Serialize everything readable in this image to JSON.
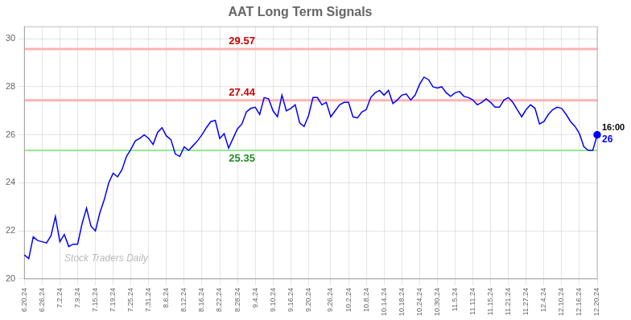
{
  "chart_data": {
    "type": "line",
    "title": "AAT Long Term Signals",
    "categories": [
      "6.20.24",
      null,
      null,
      null,
      "6.26.24",
      null,
      null,
      null,
      "7.2.24",
      null,
      null,
      null,
      "7.9.24",
      null,
      null,
      null,
      "7.15.24",
      null,
      null,
      null,
      "7.19.24",
      null,
      null,
      null,
      "7.25.24",
      null,
      null,
      null,
      "7.31.24",
      null,
      null,
      null,
      "8.6.24",
      null,
      null,
      null,
      "8.12.24",
      null,
      null,
      null,
      "8.16.24",
      null,
      null,
      null,
      "8.22.24",
      null,
      null,
      null,
      "8.28.24",
      null,
      null,
      null,
      "9.4.24",
      null,
      null,
      null,
      "9.10.24",
      null,
      null,
      null,
      "9.16.24",
      null,
      null,
      null,
      "9.20.24",
      null,
      null,
      null,
      null,
      "9.26.24",
      null,
      null,
      null,
      "10.2.24",
      null,
      null,
      null,
      "10.8.24",
      null,
      null,
      null,
      "10.14.24",
      null,
      null,
      null,
      "10.18.24",
      null,
      null,
      null,
      "10.24.24",
      null,
      null,
      null,
      "10.30.24",
      null,
      null,
      null,
      "11.5.24",
      null,
      null,
      null,
      "11.11.24",
      null,
      null,
      null,
      "11.15.24",
      null,
      null,
      null,
      "11.21.24",
      null,
      null,
      null,
      "11.27.24",
      null,
      null,
      null,
      "12.4.24",
      null,
      null,
      null,
      "12.10.24",
      null,
      null,
      null,
      "12.16.24",
      null,
      null,
      null,
      "12.20.24"
    ],
    "series": [
      {
        "color": "blue",
        "values": [
          21.0,
          20.85,
          21.75,
          21.6,
          21.55,
          21.5,
          21.8,
          22.6,
          21.55,
          21.85,
          21.35,
          21.45,
          21.45,
          22.3,
          22.95,
          22.2,
          22.0,
          22.75,
          23.3,
          24.0,
          24.4,
          24.25,
          24.55,
          25.1,
          25.4,
          25.75,
          25.85,
          26.0,
          25.85,
          25.6,
          26.1,
          26.3,
          25.95,
          25.8,
          25.2,
          25.1,
          25.5,
          25.35,
          25.55,
          25.75,
          26.0,
          26.3,
          26.55,
          26.6,
          25.85,
          26.05,
          25.45,
          25.85,
          26.25,
          26.45,
          26.95,
          27.1,
          27.15,
          26.85,
          27.55,
          27.5,
          27.0,
          26.75,
          27.65,
          27.0,
          27.1,
          27.25,
          26.5,
          26.35,
          26.8,
          27.55,
          27.55,
          27.25,
          27.35,
          26.75,
          27.0,
          27.25,
          27.35,
          27.35,
          26.75,
          26.7,
          26.95,
          27.05,
          27.55,
          27.75,
          27.85,
          27.65,
          27.85,
          27.3,
          27.45,
          27.65,
          27.7,
          27.45,
          27.65,
          28.1,
          28.4,
          28.3,
          28.0,
          27.95,
          28.0,
          27.75,
          27.6,
          27.75,
          27.8,
          27.6,
          27.55,
          27.45,
          27.25,
          27.35,
          27.5,
          27.35,
          27.15,
          27.15,
          27.45,
          27.55,
          27.35,
          27.05,
          26.75,
          27.05,
          27.25,
          27.1,
          26.45,
          26.55,
          26.85,
          27.05,
          27.15,
          27.1,
          26.85,
          26.55,
          26.35,
          26.05,
          25.5,
          25.35,
          25.35,
          26.0
        ]
      }
    ],
    "hlines": [
      {
        "value": 29.57,
        "color": "#ffb3b3",
        "label": "29.57",
        "label_color": "#cc0000"
      },
      {
        "value": 27.44,
        "color": "#ffb3b3",
        "label": "27.44",
        "label_color": "#cc0000"
      },
      {
        "value": 25.35,
        "color": "#90ee90",
        "label": "25.35",
        "label_color": "#228B22"
      }
    ],
    "last_point": {
      "time": "16:00",
      "value": 26,
      "color": "blue"
    },
    "annotations": [
      {
        "text": "Stock Traders Daily"
      }
    ],
    "ylim": [
      20,
      30.5
    ],
    "yticks": [
      20,
      22,
      24,
      26,
      28,
      30
    ],
    "grid": true
  }
}
